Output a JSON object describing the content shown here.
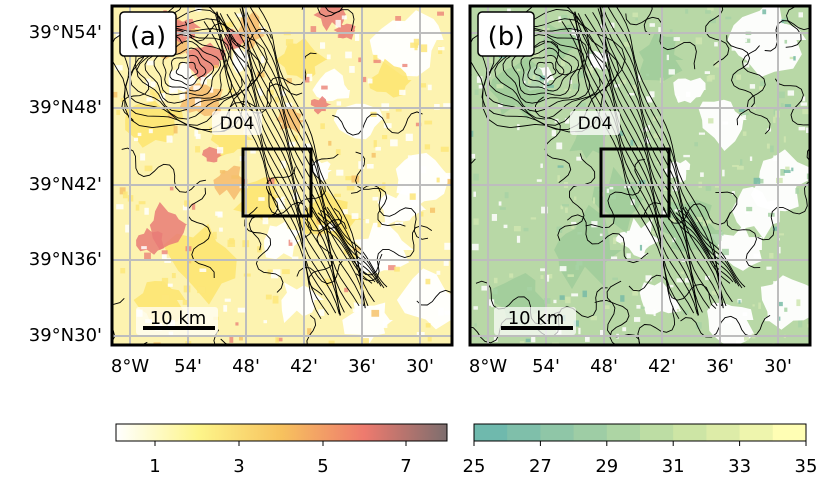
{
  "panels": [
    {
      "id": "a",
      "label": "(a)",
      "domain_label": "D04",
      "scale_bar": "10 km",
      "colormap": "white-yellow-red-gray"
    },
    {
      "id": "b",
      "label": "(b)",
      "domain_label": "D04",
      "scale_bar": "10 km",
      "colormap": "teal-green-yellow"
    }
  ],
  "y_ticks": [
    "39°N54'",
    "39°N48'",
    "39°N42'",
    "39°N36'",
    "39°N30'"
  ],
  "x_ticks": [
    "8°W",
    "54'",
    "48'",
    "42'",
    "36'",
    "30'"
  ],
  "colorbar_a": {
    "ticks": [
      "1",
      "3",
      "5",
      "7"
    ],
    "colors": [
      "#ffffff",
      "#fdf58a",
      "#f7c25e",
      "#ee7a6e",
      "#7d6e6e"
    ]
  },
  "colorbar_b": {
    "ticks": [
      "25",
      "27",
      "29",
      "31",
      "33",
      "35"
    ],
    "colors": [
      "#6fb9ad",
      "#8cc4a7",
      "#a7d2a4",
      "#c3e0a4",
      "#e0eea8",
      "#fffeb4"
    ]
  }
}
